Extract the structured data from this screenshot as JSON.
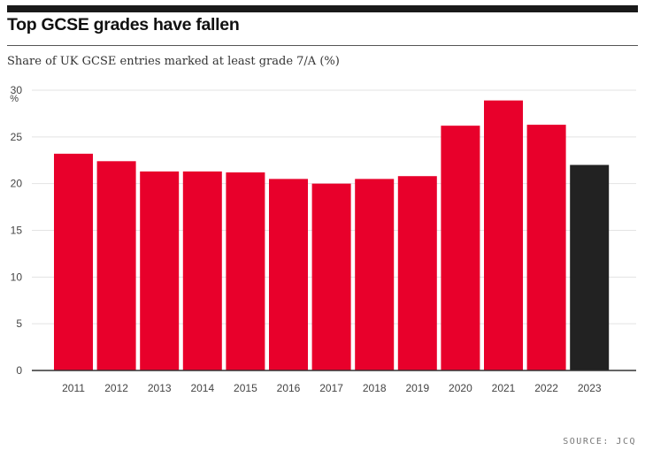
{
  "header": {
    "title": "Top GCSE grades have fallen",
    "subtitle": "Share of UK GCSE entries marked at least grade 7/A (%)"
  },
  "footer": {
    "source": "SOURCE: JCQ"
  },
  "colors": {
    "bar_default": "#e8002b",
    "bar_highlight": "#222222",
    "gridline": "#e3e3e3",
    "axis": "#333333",
    "tick_text": "#444444"
  },
  "chart_data": {
    "type": "bar",
    "title": "Top GCSE grades have fallen",
    "subtitle": "Share of UK GCSE entries marked at least grade 7/A (%)",
    "xlabel": "",
    "ylabel": "",
    "y_unit_label": "%",
    "ylim": [
      0,
      30
    ],
    "yticks": [
      0,
      5,
      10,
      15,
      20,
      25,
      30
    ],
    "grid": true,
    "categories": [
      "2011",
      "2012",
      "2013",
      "2014",
      "2015",
      "2016",
      "2017",
      "2018",
      "2019",
      "2020",
      "2021",
      "2022",
      "2023"
    ],
    "values": [
      23.2,
      22.4,
      21.3,
      21.3,
      21.2,
      20.5,
      20.0,
      20.5,
      20.8,
      26.2,
      28.9,
      26.3,
      22.0
    ],
    "highlight_category": "2023"
  }
}
